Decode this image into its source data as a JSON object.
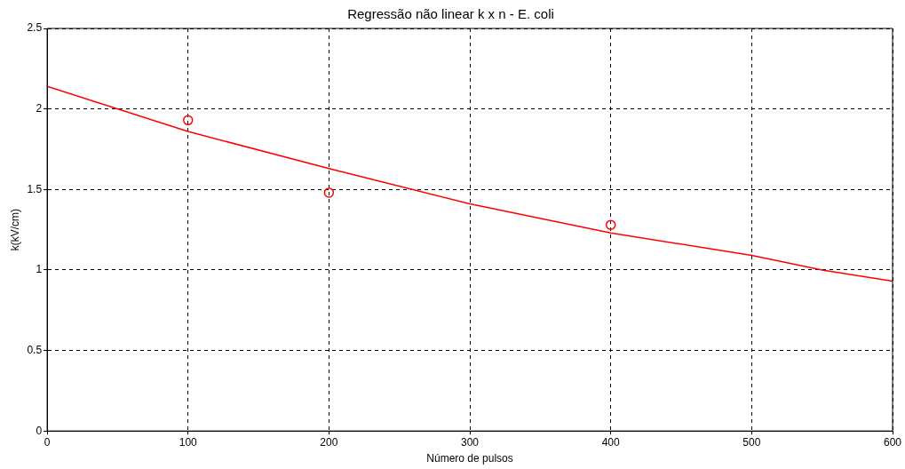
{
  "chart_data": {
    "type": "scatter",
    "title": "Regressão não linear k x n - E. coli",
    "xlabel": "Número de pulsos",
    "ylabel": "k(kV/cm)",
    "xlim": [
      0,
      600
    ],
    "xticks": [
      0,
      100,
      200,
      300,
      400,
      500,
      600
    ],
    "ylim": [
      0,
      2.5
    ],
    "yticks": [
      0,
      0.5,
      1,
      1.5,
      2,
      2.5
    ],
    "grid": true,
    "series": [
      {
        "type": "scatter",
        "color": "#ff0000",
        "marker": "circle",
        "x": [
          100,
          200,
          400
        ],
        "values": [
          1.93,
          1.48,
          1.28
        ]
      },
      {
        "type": "line",
        "color": "#ff0000",
        "marker": "none",
        "x": [
          0,
          100,
          200,
          300,
          400,
          500,
          550,
          600
        ],
        "values": [
          2.14,
          1.86,
          1.63,
          1.41,
          1.23,
          1.09,
          1.0,
          0.93
        ]
      }
    ]
  }
}
